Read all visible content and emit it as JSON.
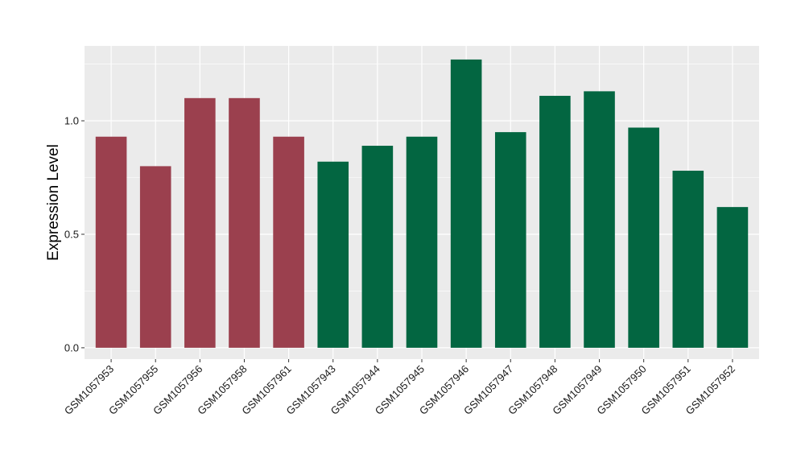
{
  "chart_data": {
    "type": "bar",
    "title": "",
    "xlabel": "",
    "ylabel": "Expression Level",
    "ylim": [
      -0.05,
      1.33
    ],
    "y_ticks": [
      0.0,
      0.5,
      1.0
    ],
    "y_tick_labels": [
      "0.0",
      "0.5",
      "1.0"
    ],
    "grid": true,
    "categories": [
      "GSM1057953",
      "GSM1057955",
      "GSM1057956",
      "GSM1057958",
      "GSM1057961",
      "GSM1057943",
      "GSM1057944",
      "GSM1057945",
      "GSM1057946",
      "GSM1057947",
      "GSM1057948",
      "GSM1057949",
      "GSM1057950",
      "GSM1057951",
      "GSM1057952"
    ],
    "values": [
      0.93,
      0.8,
      1.1,
      1.1,
      0.93,
      0.82,
      0.89,
      0.93,
      1.27,
      0.95,
      1.11,
      1.13,
      0.97,
      0.78,
      0.62
    ],
    "groups": [
      "a",
      "a",
      "a",
      "a",
      "a",
      "b",
      "b",
      "b",
      "b",
      "b",
      "b",
      "b",
      "b",
      "b",
      "b"
    ],
    "colors": {
      "a": "#9b404e",
      "b": "#036641"
    },
    "panel_background": "#ebebeb",
    "gridline_color": "#ffffff"
  }
}
